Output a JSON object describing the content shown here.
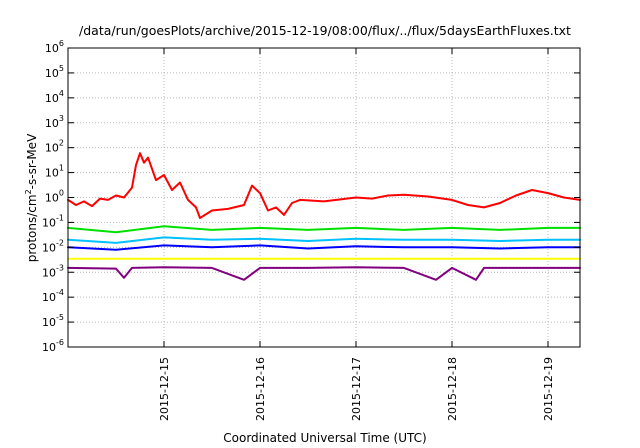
{
  "chart_data": {
    "type": "line",
    "title": "/data/run/goesPlots/archive/2015-12-19/08:00/flux/../flux/5daysEarthFluxes.txt",
    "xlabel": "Coordinated Universal Time (UTC)",
    "ylabel": "protons/cm²-s-sr-MeV",
    "ylabel_parts": {
      "pre": "protons/cm",
      "sup": "2",
      "post": "-s-sr-MeV"
    },
    "yscale": "log",
    "ylim": [
      1e-06,
      1000000.0
    ],
    "xlim": [
      "2015-12-14T00:00",
      "2015-12-19T08:00"
    ],
    "grid": true,
    "legend": "none",
    "y_ticks": [
      {
        "base": "10",
        "exp": "-6",
        "value": 1e-06
      },
      {
        "base": "10",
        "exp": "-5",
        "value": 1e-05
      },
      {
        "base": "10",
        "exp": "-4",
        "value": 0.0001
      },
      {
        "base": "10",
        "exp": "-3",
        "value": 0.001
      },
      {
        "base": "10",
        "exp": "-2",
        "value": 0.01
      },
      {
        "base": "10",
        "exp": "-1",
        "value": 0.1
      },
      {
        "base": "10",
        "exp": "0",
        "value": 1
      },
      {
        "base": "10",
        "exp": "1",
        "value": 10
      },
      {
        "base": "10",
        "exp": "2",
        "value": 100
      },
      {
        "base": "10",
        "exp": "3",
        "value": 1000
      },
      {
        "base": "10",
        "exp": "4",
        "value": 10000
      },
      {
        "base": "10",
        "exp": "5",
        "value": 100000
      },
      {
        "base": "10",
        "exp": "6",
        "value": 1000000
      }
    ],
    "x_ticks": [
      {
        "label": "2015-12-15",
        "value": "2015-12-15T00:00"
      },
      {
        "label": "2015-12-16",
        "value": "2015-12-16T00:00"
      },
      {
        "label": "2015-12-17",
        "value": "2015-12-17T00:00"
      },
      {
        "label": "2015-12-18",
        "value": "2015-12-18T00:00"
      },
      {
        "label": "2015-12-19",
        "value": "2015-12-19T00:00"
      }
    ],
    "series": [
      {
        "color": "#ff0000",
        "points": [
          [
            "2015-12-14T00:00",
            0.8
          ],
          [
            "2015-12-14T02:00",
            0.5
          ],
          [
            "2015-12-14T04:00",
            0.7
          ],
          [
            "2015-12-14T06:00",
            0.45
          ],
          [
            "2015-12-14T08:00",
            0.9
          ],
          [
            "2015-12-14T10:00",
            0.8
          ],
          [
            "2015-12-14T12:00",
            1.2
          ],
          [
            "2015-12-14T14:00",
            1.0
          ],
          [
            "2015-12-14T16:00",
            2.5
          ],
          [
            "2015-12-14T17:00",
            20
          ],
          [
            "2015-12-14T18:00",
            60
          ],
          [
            "2015-12-14T19:00",
            25
          ],
          [
            "2015-12-14T20:00",
            40
          ],
          [
            "2015-12-14T22:00",
            5
          ],
          [
            "2015-12-15T00:00",
            8
          ],
          [
            "2015-12-15T02:00",
            2.0
          ],
          [
            "2015-12-15T04:00",
            4.0
          ],
          [
            "2015-12-15T06:00",
            0.8
          ],
          [
            "2015-12-15T08:00",
            0.4
          ],
          [
            "2015-12-15T09:00",
            0.15
          ],
          [
            "2015-12-15T12:00",
            0.3
          ],
          [
            "2015-12-15T16:00",
            0.35
          ],
          [
            "2015-12-15T20:00",
            0.5
          ],
          [
            "2015-12-15T22:00",
            3.0
          ],
          [
            "2015-12-16T00:00",
            1.5
          ],
          [
            "2015-12-16T02:00",
            0.3
          ],
          [
            "2015-12-16T04:00",
            0.4
          ],
          [
            "2015-12-16T06:00",
            0.2
          ],
          [
            "2015-12-16T08:00",
            0.6
          ],
          [
            "2015-12-16T10:00",
            0.8
          ],
          [
            "2015-12-16T16:00",
            0.7
          ],
          [
            "2015-12-17T00:00",
            1.0
          ],
          [
            "2015-12-17T04:00",
            0.9
          ],
          [
            "2015-12-17T08:00",
            1.2
          ],
          [
            "2015-12-17T12:00",
            1.3
          ],
          [
            "2015-12-17T18:00",
            1.1
          ],
          [
            "2015-12-18T00:00",
            0.8
          ],
          [
            "2015-12-18T04:00",
            0.5
          ],
          [
            "2015-12-18T08:00",
            0.4
          ],
          [
            "2015-12-18T12:00",
            0.6
          ],
          [
            "2015-12-18T16:00",
            1.2
          ],
          [
            "2015-12-18T20:00",
            2.0
          ],
          [
            "2015-12-19T00:00",
            1.5
          ],
          [
            "2015-12-19T04:00",
            1.0
          ],
          [
            "2015-12-19T08:00",
            0.8
          ]
        ]
      },
      {
        "color": "#00e000",
        "points": [
          [
            "2015-12-14T00:00",
            0.06
          ],
          [
            "2015-12-14T12:00",
            0.04
          ],
          [
            "2015-12-15T00:00",
            0.07
          ],
          [
            "2015-12-15T12:00",
            0.05
          ],
          [
            "2015-12-16T00:00",
            0.06
          ],
          [
            "2015-12-16T12:00",
            0.05
          ],
          [
            "2015-12-17T00:00",
            0.06
          ],
          [
            "2015-12-17T12:00",
            0.05
          ],
          [
            "2015-12-18T00:00",
            0.06
          ],
          [
            "2015-12-18T12:00",
            0.05
          ],
          [
            "2015-12-19T00:00",
            0.06
          ],
          [
            "2015-12-19T08:00",
            0.06
          ]
        ]
      },
      {
        "color": "#00c0ff",
        "points": [
          [
            "2015-12-14T00:00",
            0.02
          ],
          [
            "2015-12-14T12:00",
            0.015
          ],
          [
            "2015-12-15T00:00",
            0.025
          ],
          [
            "2015-12-15T12:00",
            0.02
          ],
          [
            "2015-12-16T00:00",
            0.022
          ],
          [
            "2015-12-16T12:00",
            0.018
          ],
          [
            "2015-12-17T00:00",
            0.022
          ],
          [
            "2015-12-17T12:00",
            0.02
          ],
          [
            "2015-12-18T00:00",
            0.02
          ],
          [
            "2015-12-18T12:00",
            0.018
          ],
          [
            "2015-12-19T00:00",
            0.02
          ],
          [
            "2015-12-19T08:00",
            0.02
          ]
        ]
      },
      {
        "color": "#0000ff",
        "points": [
          [
            "2015-12-14T00:00",
            0.01
          ],
          [
            "2015-12-14T12:00",
            0.008
          ],
          [
            "2015-12-15T00:00",
            0.012
          ],
          [
            "2015-12-15T12:00",
            0.01
          ],
          [
            "2015-12-16T00:00",
            0.012
          ],
          [
            "2015-12-16T12:00",
            0.009
          ],
          [
            "2015-12-17T00:00",
            0.011
          ],
          [
            "2015-12-17T12:00",
            0.01
          ],
          [
            "2015-12-18T00:00",
            0.01
          ],
          [
            "2015-12-18T12:00",
            0.009
          ],
          [
            "2015-12-19T00:00",
            0.01
          ],
          [
            "2015-12-19T08:00",
            0.01
          ]
        ]
      },
      {
        "color": "#ffff00",
        "points": [
          [
            "2015-12-14T00:00",
            0.0035
          ],
          [
            "2015-12-15T00:00",
            0.0035
          ],
          [
            "2015-12-16T00:00",
            0.0035
          ],
          [
            "2015-12-17T00:00",
            0.0035
          ],
          [
            "2015-12-18T00:00",
            0.0035
          ],
          [
            "2015-12-19T00:00",
            0.0035
          ],
          [
            "2015-12-19T08:00",
            0.0035
          ]
        ]
      },
      {
        "color": "#800080",
        "points": [
          [
            "2015-12-14T00:00",
            0.0015
          ],
          [
            "2015-12-14T12:00",
            0.0014
          ],
          [
            "2015-12-14T14:00",
            0.0006
          ],
          [
            "2015-12-14T16:00",
            0.0015
          ],
          [
            "2015-12-15T00:00",
            0.0016
          ],
          [
            "2015-12-15T12:00",
            0.0015
          ],
          [
            "2015-12-15T20:00",
            0.0005
          ],
          [
            "2015-12-16T00:00",
            0.0015
          ],
          [
            "2015-12-16T12:00",
            0.0015
          ],
          [
            "2015-12-17T00:00",
            0.0016
          ],
          [
            "2015-12-17T12:00",
            0.0015
          ],
          [
            "2015-12-17T20:00",
            0.0005
          ],
          [
            "2015-12-18T00:00",
            0.0015
          ],
          [
            "2015-12-18T06:00",
            0.0005
          ],
          [
            "2015-12-18T08:00",
            0.0015
          ],
          [
            "2015-12-19T00:00",
            0.0015
          ],
          [
            "2015-12-19T08:00",
            0.0015
          ]
        ]
      }
    ]
  }
}
